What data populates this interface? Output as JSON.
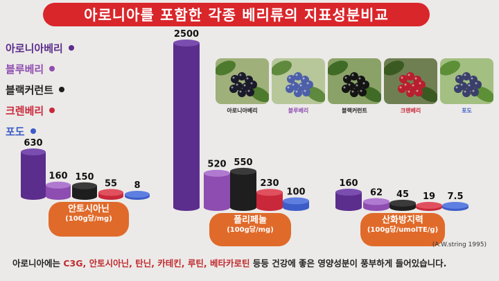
{
  "title": "아로니아를 포함한 각종 베리류의 지표성분비교",
  "legend": [
    {
      "label": "아로니아베리",
      "color": "#5b2d8c",
      "text_color": "#5b2d8c"
    },
    {
      "label": "블루베리",
      "color": "#8e4db0",
      "text_color": "#8e4db0"
    },
    {
      "label": "블랙커런트",
      "color": "#1e1e1e",
      "text_color": "#222222"
    },
    {
      "label": "크렌베리",
      "color": "#c8283a",
      "text_color": "#c8283a"
    },
    {
      "label": "포도",
      "color": "#3c5cc8",
      "text_color": "#3c5cc8"
    }
  ],
  "photos": [
    {
      "label": "아로니아베리",
      "label_color": "#222222",
      "fruit": "#1a1a2a",
      "leaf": "#4e7a2e",
      "bg": "#9fb07a"
    },
    {
      "label": "블루베리",
      "label_color": "#8e4db0",
      "fruit": "#4d5fa8",
      "leaf": "#5f8a3e",
      "bg": "#b7c79a"
    },
    {
      "label": "블랙커런트",
      "label_color": "#222222",
      "fruit": "#141414",
      "leaf": "#3f6b26",
      "bg": "#8aa267"
    },
    {
      "label": "크렌베리",
      "label_color": "#c8283a",
      "fruit": "#b81f2e",
      "leaf": "#3a5a22",
      "bg": "#6f7f52"
    },
    {
      "label": "포도",
      "label_color": "#3c5cc8",
      "fruit": "#3a3f6a",
      "leaf": "#5d8f37",
      "bg": "#a3bf82"
    }
  ],
  "chart_data": [
    {
      "type": "bar",
      "title": "안토시아닌",
      "unit": "(100g당/mg)",
      "categories": [
        "아로니아베리",
        "블루베리",
        "블랙커런트",
        "크렌베리",
        "포도"
      ],
      "values": [
        630,
        160,
        150,
        55,
        8
      ],
      "labels": [
        "630",
        "160",
        "150",
        "55",
        "8"
      ]
    },
    {
      "type": "bar",
      "title": "폴리페놀",
      "unit": "(100g당/mg)",
      "categories": [
        "아로니아베리",
        "블루베리",
        "블랙커런트",
        "크렌베리",
        "포도"
      ],
      "values": [
        2500,
        520,
        550,
        230,
        100
      ],
      "labels": [
        "2500",
        "520",
        "550",
        "230",
        "100"
      ]
    },
    {
      "type": "bar",
      "title": "산화방지력",
      "unit": "(100g당/umolTE/g)",
      "categories": [
        "아로니아베리",
        "블루베리",
        "블랙커런트",
        "크렌베리",
        "포도"
      ],
      "values": [
        160,
        62,
        45,
        19,
        7.5
      ],
      "labels": [
        "160",
        "62",
        "45",
        "19",
        "7.5"
      ]
    }
  ],
  "source": "(A.W.string 1995)",
  "footer": {
    "prefix": "아로니아에는 ",
    "highlight": "C3G, 안토시아닌, 탄닌, 카테킨, 루틴, 베타카로틴",
    "suffix": " 등등  건강에 좋은 영양성분이 풍부하게 들어있습니다."
  }
}
